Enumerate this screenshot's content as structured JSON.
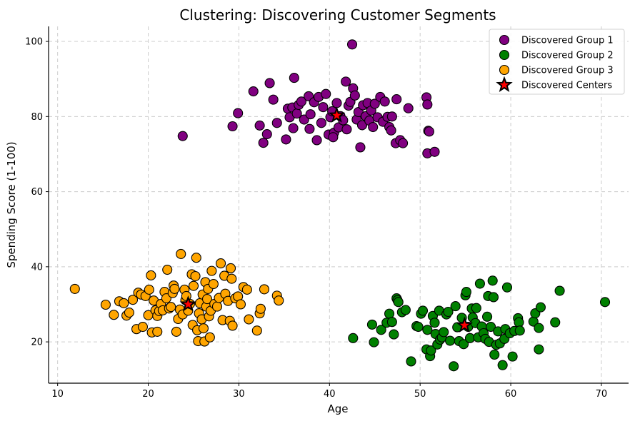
{
  "chart_data": {
    "type": "scatter",
    "title": "Clustering: Discovering Customer Segments",
    "xlabel": "Age",
    "ylabel": "Spending Score (1-100)",
    "xlim": [
      9,
      73
    ],
    "ylim": [
      9,
      104
    ],
    "xticks": [
      10,
      20,
      30,
      40,
      50,
      60,
      70
    ],
    "yticks": [
      20,
      40,
      60,
      80,
      100
    ],
    "grid": true,
    "legend_position": "top-right",
    "series": [
      {
        "name": "Discovered Group 1",
        "color": "#800080",
        "points": [
          [
            23.8,
            74.8
          ],
          [
            29.3,
            77.4
          ],
          [
            29.9,
            80.9
          ],
          [
            31.6,
            86.7
          ],
          [
            32.3,
            77.6
          ],
          [
            32.7,
            73.0
          ],
          [
            33.1,
            75.3
          ],
          [
            33.4,
            88.9
          ],
          [
            33.8,
            84.5
          ],
          [
            34.2,
            78.3
          ],
          [
            35.2,
            73.9
          ],
          [
            35.4,
            82.1
          ],
          [
            35.6,
            79.8
          ],
          [
            35.9,
            82.4
          ],
          [
            36.1,
            90.3
          ],
          [
            36.0,
            76.9
          ],
          [
            36.4,
            80.8
          ],
          [
            36.6,
            83.1
          ],
          [
            36.9,
            84.0
          ],
          [
            37.2,
            79.2
          ],
          [
            37.7,
            85.4
          ],
          [
            37.9,
            80.6
          ],
          [
            37.8,
            76.7
          ],
          [
            38.3,
            83.8
          ],
          [
            38.6,
            73.7
          ],
          [
            38.8,
            85.2
          ],
          [
            39.1,
            78.3
          ],
          [
            39.3,
            82.5
          ],
          [
            39.6,
            86.0
          ],
          [
            39.9,
            75.2
          ],
          [
            40.1,
            79.8
          ],
          [
            40.3,
            81.4
          ],
          [
            40.5,
            75.7
          ],
          [
            40.4,
            74.5
          ],
          [
            40.8,
            83.6
          ],
          [
            41.0,
            77.1
          ],
          [
            41.2,
            80.1
          ],
          [
            41.5,
            79.0
          ],
          [
            41.8,
            89.3
          ],
          [
            41.9,
            76.6
          ],
          [
            42.1,
            82.9
          ],
          [
            42.3,
            83.9
          ],
          [
            42.5,
            99.2
          ],
          [
            42.6,
            87.5
          ],
          [
            42.8,
            85.6
          ],
          [
            43.0,
            79.2
          ],
          [
            43.2,
            81.2
          ],
          [
            43.4,
            71.8
          ],
          [
            43.6,
            77.7
          ],
          [
            43.7,
            83.0
          ],
          [
            44.0,
            80.1
          ],
          [
            44.2,
            83.6
          ],
          [
            44.4,
            78.9
          ],
          [
            44.6,
            81.6
          ],
          [
            44.8,
            77.2
          ],
          [
            45.0,
            83.4
          ],
          [
            45.3,
            79.8
          ],
          [
            45.6,
            85.2
          ],
          [
            45.9,
            78.6
          ],
          [
            46.1,
            84.0
          ],
          [
            46.4,
            79.9
          ],
          [
            46.6,
            77.2
          ],
          [
            46.8,
            76.3
          ],
          [
            46.9,
            80.0
          ],
          [
            47.3,
            72.9
          ],
          [
            47.4,
            84.6
          ],
          [
            47.8,
            73.7
          ],
          [
            48.1,
            72.9
          ],
          [
            48.7,
            82.2
          ],
          [
            50.7,
            85.1
          ],
          [
            50.8,
            83.2
          ],
          [
            50.9,
            76.2
          ],
          [
            51.0,
            76.0
          ],
          [
            50.8,
            70.2
          ],
          [
            51.6,
            70.6
          ]
        ]
      },
      {
        "name": "Discovered Group 2",
        "color": "#008000",
        "points": [
          [
            42.6,
            21.0
          ],
          [
            44.7,
            24.6
          ],
          [
            44.9,
            19.9
          ],
          [
            45.7,
            23.2
          ],
          [
            46.3,
            25.1
          ],
          [
            46.6,
            27.5
          ],
          [
            46.9,
            25.3
          ],
          [
            47.1,
            22.0
          ],
          [
            47.4,
            31.6
          ],
          [
            47.5,
            31.1
          ],
          [
            47.6,
            30.6
          ],
          [
            48.0,
            27.9
          ],
          [
            48.4,
            28.5
          ],
          [
            49.0,
            14.8
          ],
          [
            49.6,
            24.2
          ],
          [
            49.8,
            24.0
          ],
          [
            50.1,
            27.5
          ],
          [
            50.3,
            28.3
          ],
          [
            50.7,
            18.0
          ],
          [
            50.8,
            23.2
          ],
          [
            51.1,
            16.2
          ],
          [
            51.2,
            17.7
          ],
          [
            51.4,
            26.9
          ],
          [
            51.6,
            25.1
          ],
          [
            51.7,
            22.1
          ],
          [
            51.9,
            19.3
          ],
          [
            52.1,
            28.3
          ],
          [
            52.2,
            20.6
          ],
          [
            52.4,
            21.2
          ],
          [
            52.6,
            22.6
          ],
          [
            52.9,
            27.3
          ],
          [
            53.1,
            28.0
          ],
          [
            53.3,
            20.3
          ],
          [
            53.7,
            13.5
          ],
          [
            53.9,
            29.5
          ],
          [
            54.1,
            23.9
          ],
          [
            54.3,
            20.2
          ],
          [
            54.6,
            26.4
          ],
          [
            54.8,
            19.4
          ],
          [
            55.0,
            32.4
          ],
          [
            55.1,
            33.3
          ],
          [
            55.3,
            24.0
          ],
          [
            55.5,
            21.0
          ],
          [
            55.7,
            28.9
          ],
          [
            55.8,
            26.5
          ],
          [
            56.1,
            25.0
          ],
          [
            56.2,
            29.0
          ],
          [
            56.4,
            21.2
          ],
          [
            56.6,
            35.5
          ],
          [
            56.8,
            24.1
          ],
          [
            57.0,
            22.3
          ],
          [
            57.2,
            20.8
          ],
          [
            57.4,
            26.7
          ],
          [
            57.5,
            32.2
          ],
          [
            57.6,
            20.0
          ],
          [
            57.8,
            24.0
          ],
          [
            58.0,
            36.3
          ],
          [
            58.1,
            31.9
          ],
          [
            58.2,
            16.6
          ],
          [
            58.4,
            19.2
          ],
          [
            58.6,
            22.8
          ],
          [
            58.8,
            19.6
          ],
          [
            59.1,
            13.8
          ],
          [
            59.3,
            20.8
          ],
          [
            59.4,
            23.4
          ],
          [
            59.6,
            34.5
          ],
          [
            59.9,
            22.3
          ],
          [
            60.2,
            16.1
          ],
          [
            60.4,
            22.9
          ],
          [
            60.8,
            26.3
          ],
          [
            60.9,
            25.2
          ],
          [
            61.0,
            23.0
          ],
          [
            62.5,
            25.4
          ],
          [
            62.7,
            27.6
          ],
          [
            63.1,
            23.7
          ],
          [
            63.3,
            29.2
          ],
          [
            63.1,
            18.0
          ],
          [
            64.9,
            25.2
          ],
          [
            65.4,
            33.6
          ],
          [
            70.4,
            30.6
          ]
        ]
      },
      {
        "name": "Discovered Group 3",
        "color": "#FFA500",
        "points": [
          [
            11.9,
            34.1
          ],
          [
            15.3,
            29.9
          ],
          [
            16.2,
            27.2
          ],
          [
            16.8,
            30.8
          ],
          [
            17.3,
            30.3
          ],
          [
            17.6,
            27.0
          ],
          [
            17.9,
            27.8
          ],
          [
            18.3,
            31.2
          ],
          [
            18.7,
            23.4
          ],
          [
            18.9,
            33.1
          ],
          [
            19.2,
            32.6
          ],
          [
            19.4,
            24.0
          ],
          [
            19.7,
            32.2
          ],
          [
            20.0,
            27.1
          ],
          [
            20.1,
            33.9
          ],
          [
            20.3,
            37.7
          ],
          [
            20.4,
            22.5
          ],
          [
            20.6,
            31.0
          ],
          [
            20.8,
            28.4
          ],
          [
            21.0,
            26.9
          ],
          [
            21.0,
            22.7
          ],
          [
            21.2,
            28.2
          ],
          [
            21.4,
            30.1
          ],
          [
            21.6,
            28.4
          ],
          [
            21.8,
            33.3
          ],
          [
            22.0,
            31.6
          ],
          [
            22.1,
            39.2
          ],
          [
            22.3,
            28.9
          ],
          [
            22.5,
            29.3
          ],
          [
            22.7,
            33.0
          ],
          [
            22.8,
            35.0
          ],
          [
            22.9,
            34.1
          ],
          [
            23.1,
            22.7
          ],
          [
            23.3,
            26.1
          ],
          [
            23.5,
            28.6
          ],
          [
            23.6,
            43.4
          ],
          [
            23.8,
            27.3
          ],
          [
            24.0,
            33.9
          ],
          [
            24.1,
            31.1
          ],
          [
            24.2,
            32.2
          ],
          [
            24.4,
            28.3
          ],
          [
            24.6,
            30.1
          ],
          [
            24.8,
            38.0
          ],
          [
            24.9,
            24.5
          ],
          [
            25.0,
            34.9
          ],
          [
            25.2,
            37.5
          ],
          [
            25.3,
            42.4
          ],
          [
            25.4,
            23.1
          ],
          [
            25.5,
            20.2
          ],
          [
            25.6,
            27.6
          ],
          [
            25.7,
            30.3
          ],
          [
            25.9,
            26.0
          ],
          [
            26.0,
            32.6
          ],
          [
            26.1,
            23.6
          ],
          [
            26.2,
            20.1
          ],
          [
            26.3,
            35.9
          ],
          [
            26.4,
            29.4
          ],
          [
            26.5,
            31.4
          ],
          [
            26.6,
            34.1
          ],
          [
            26.7,
            26.8
          ],
          [
            26.8,
            21.2
          ],
          [
            26.9,
            28.3
          ],
          [
            27.0,
            38.9
          ],
          [
            27.2,
            35.4
          ],
          [
            27.3,
            30.1
          ],
          [
            27.6,
            29.4
          ],
          [
            27.8,
            31.7
          ],
          [
            28.0,
            40.9
          ],
          [
            28.2,
            25.8
          ],
          [
            28.4,
            37.6
          ],
          [
            28.5,
            32.8
          ],
          [
            28.8,
            30.9
          ],
          [
            29.0,
            25.6
          ],
          [
            29.1,
            39.6
          ],
          [
            29.2,
            36.8
          ],
          [
            29.3,
            24.3
          ],
          [
            29.6,
            31.6
          ],
          [
            29.9,
            32.1
          ],
          [
            30.2,
            30.0
          ],
          [
            30.5,
            34.6
          ],
          [
            30.9,
            33.9
          ],
          [
            31.1,
            26.0
          ],
          [
            32.0,
            23.0
          ],
          [
            32.3,
            27.6
          ],
          [
            32.4,
            28.8
          ],
          [
            32.8,
            34.0
          ],
          [
            34.2,
            32.3
          ],
          [
            34.4,
            31.0
          ]
        ]
      }
    ],
    "centers": {
      "name": "Discovered Centers",
      "color": "#FF0000",
      "points": [
        [
          24.4,
          30.0
        ],
        [
          40.8,
          80.3
        ],
        [
          54.9,
          24.4
        ]
      ]
    }
  }
}
